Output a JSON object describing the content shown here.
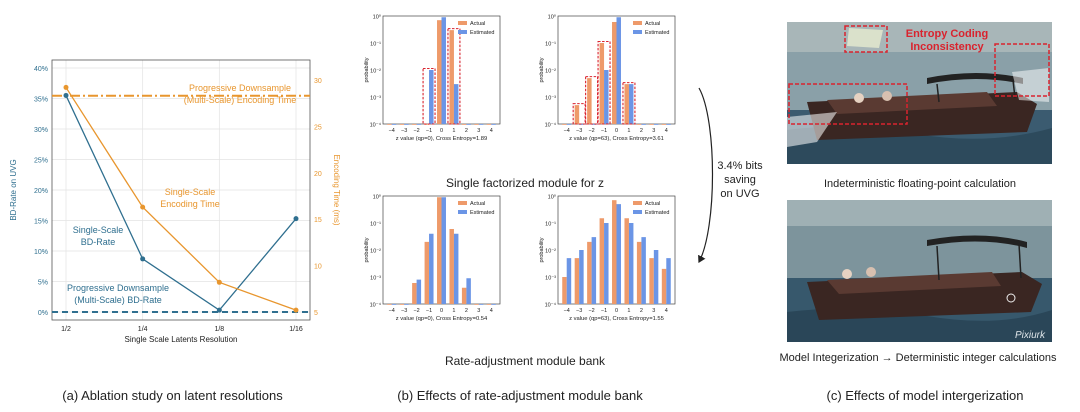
{
  "colors": {
    "bd": "#2f6f8f",
    "enc": "#e8962e",
    "actual": "#ee9a6a",
    "estimated": "#6b95e6",
    "red": "#d9232e"
  },
  "panel_a": {
    "caption": "(a) Ablation study on latent resolutions",
    "ref_enc_label": [
      "Progressive Downsample",
      "(Multi-Scale) Encoding Time"
    ],
    "ref_bd_label": [
      "Progressive Downsample",
      "(Multi-Scale) BD-Rate"
    ],
    "enc_series_label": [
      "Single-Scale",
      "Encoding Time"
    ],
    "bd_series_label": [
      "Single-Scale",
      "BD-Rate"
    ]
  },
  "panel_b": {
    "caption": "(b) Effects of rate-adjustment module bank",
    "top_title": "Single factorized module for z",
    "bottom_title": "Rate-adjustment module bank",
    "saving_note": [
      "3.4% bits",
      "saving",
      "on UVG"
    ]
  },
  "panel_c": {
    "caption": "(c) Effects of model intergerization",
    "top_label": "Indeterministic floating-point calculation",
    "bottom_label": "Model Integerization → Deterministic integer calculations",
    "annotation": [
      "Entropy Coding",
      "Inconsistency"
    ],
    "watermark": "Pixiurk"
  },
  "chart_data": [
    {
      "type": "line",
      "xlabel": "Single Scale Latents Resolution",
      "categories": [
        "1/2",
        "1/4",
        "1/8",
        "1/16"
      ],
      "ylabel": "BD-Rate on UVG",
      "ylabel2": "Encoding Time (ms)",
      "y_ticks": [
        "0%",
        "5%",
        "10%",
        "15%",
        "20%",
        "25%",
        "30%",
        "35%",
        "40%"
      ],
      "y2_ticks": [
        "5",
        "10",
        "15",
        "20",
        "25",
        "30"
      ],
      "ylim": [
        0,
        40
      ],
      "y2lim": [
        5,
        30
      ],
      "grid": true,
      "series": [
        {
          "name": "Single-Scale BD-Rate",
          "axis": "left",
          "values": [
            35.5,
            8.7,
            0.3,
            15.3
          ]
        },
        {
          "name": "Single-Scale Encoding Time",
          "axis": "right",
          "values": [
            29.2,
            16.3,
            8.2,
            5.2
          ]
        }
      ],
      "reference_lines": [
        {
          "name": "Progressive Downsample (Multi-Scale) Encoding Time",
          "axis": "right",
          "value": 28.3
        },
        {
          "name": "Progressive Downsample (Multi-Scale) BD-Rate",
          "axis": "left",
          "value": 0
        }
      ]
    },
    {
      "type": "bar",
      "scale": "log",
      "x": [
        -4,
        -3,
        -2,
        -1,
        0,
        1,
        2,
        3,
        4
      ],
      "x_tick_labels": [
        "−4",
        "−3",
        "−2",
        "−1",
        "0",
        "1",
        "2",
        "3",
        "4"
      ],
      "y_ticks": [
        "10⁰",
        "10⁻¹",
        "10⁻²",
        "10⁻³",
        "10⁻⁴"
      ],
      "ylim": [
        0.0001,
        1
      ],
      "ylabel": "probability",
      "xlabel": "z value (qp=0), Cross Entropy=1.89",
      "legend": [
        "Actual",
        "Estimated"
      ],
      "legend_position": "top-right",
      "series": [
        {
          "name": "Actual",
          "values": [
            0.0001,
            0.0001,
            0.0001,
            0.0001,
            0.7,
            0.3,
            0.0001,
            0.0001,
            0.0001
          ]
        },
        {
          "name": "Estimated",
          "values": [
            0.0001,
            0.0001,
            0.0001,
            0.01,
            0.9,
            0.003,
            0.0001,
            0.0001,
            0.0001
          ]
        }
      ],
      "highlight_boxes_x": [
        -1,
        1
      ]
    },
    {
      "type": "bar",
      "scale": "log",
      "x": [
        -4,
        -3,
        -2,
        -1,
        0,
        1,
        2,
        3,
        4
      ],
      "x_tick_labels": [
        "−4",
        "−3",
        "−2",
        "−1",
        "0",
        "1",
        "2",
        "3",
        "4"
      ],
      "y_ticks": [
        "10⁰",
        "10⁻¹",
        "10⁻²",
        "10⁻³",
        "10⁻⁴"
      ],
      "ylim": [
        0.0001,
        1
      ],
      "ylabel": "probability",
      "xlabel": "z value (qp=63), Cross Entropy=3.61",
      "legend": [
        "Actual",
        "Estimated"
      ],
      "legend_position": "top-right",
      "series": [
        {
          "name": "Actual",
          "values": [
            0.0001,
            0.0005,
            0.005,
            0.1,
            0.6,
            0.003,
            0.0001,
            0.0001,
            0.0001
          ]
        },
        {
          "name": "Estimated",
          "values": [
            0.0001,
            0.0001,
            0.0001,
            0.01,
            0.9,
            0.003,
            0.0001,
            0.0001,
            0.0001
          ]
        }
      ],
      "highlight_boxes_x": [
        -3,
        -2,
        -1,
        1
      ]
    },
    {
      "type": "bar",
      "scale": "log",
      "x": [
        -4,
        -3,
        -2,
        -1,
        0,
        1,
        2,
        3,
        4
      ],
      "x_tick_labels": [
        "−4",
        "−3",
        "−2",
        "−1",
        "0",
        "1",
        "2",
        "3",
        "4"
      ],
      "y_ticks": [
        "10⁰",
        "10⁻¹",
        "10⁻²",
        "10⁻³",
        "10⁻⁴"
      ],
      "ylim": [
        0.0001,
        1
      ],
      "ylabel": "probability",
      "xlabel": "z value (qp=0), Cross Entropy=0.54",
      "legend": [
        "Actual",
        "Estimated"
      ],
      "legend_position": "top-right",
      "series": [
        {
          "name": "Actual",
          "values": [
            0.0001,
            0.0001,
            0.0006,
            0.02,
            0.9,
            0.06,
            0.0004,
            0.0001,
            0.0001
          ]
        },
        {
          "name": "Estimated",
          "values": [
            0.0001,
            0.0001,
            0.0008,
            0.04,
            0.9,
            0.04,
            0.0009,
            0.0001,
            0.0001
          ]
        }
      ]
    },
    {
      "type": "bar",
      "scale": "log",
      "x": [
        -4,
        -3,
        -2,
        -1,
        0,
        1,
        2,
        3,
        4
      ],
      "x_tick_labels": [
        "−4",
        "−3",
        "−2",
        "−1",
        "0",
        "1",
        "2",
        "3",
        "4"
      ],
      "y_ticks": [
        "10⁰",
        "10⁻¹",
        "10⁻²",
        "10⁻³",
        "10⁻⁴"
      ],
      "ylim": [
        0.0001,
        1
      ],
      "ylabel": "probability",
      "xlabel": "z value (qp=63), Cross Entropy=1.55",
      "legend": [
        "Actual",
        "Estimated"
      ],
      "legend_position": "top-right",
      "series": [
        {
          "name": "Actual",
          "values": [
            0.001,
            0.005,
            0.02,
            0.15,
            0.7,
            0.15,
            0.02,
            0.005,
            0.002
          ]
        },
        {
          "name": "Estimated",
          "values": [
            0.005,
            0.01,
            0.03,
            0.1,
            0.5,
            0.1,
            0.03,
            0.01,
            0.005
          ]
        }
      ]
    }
  ]
}
